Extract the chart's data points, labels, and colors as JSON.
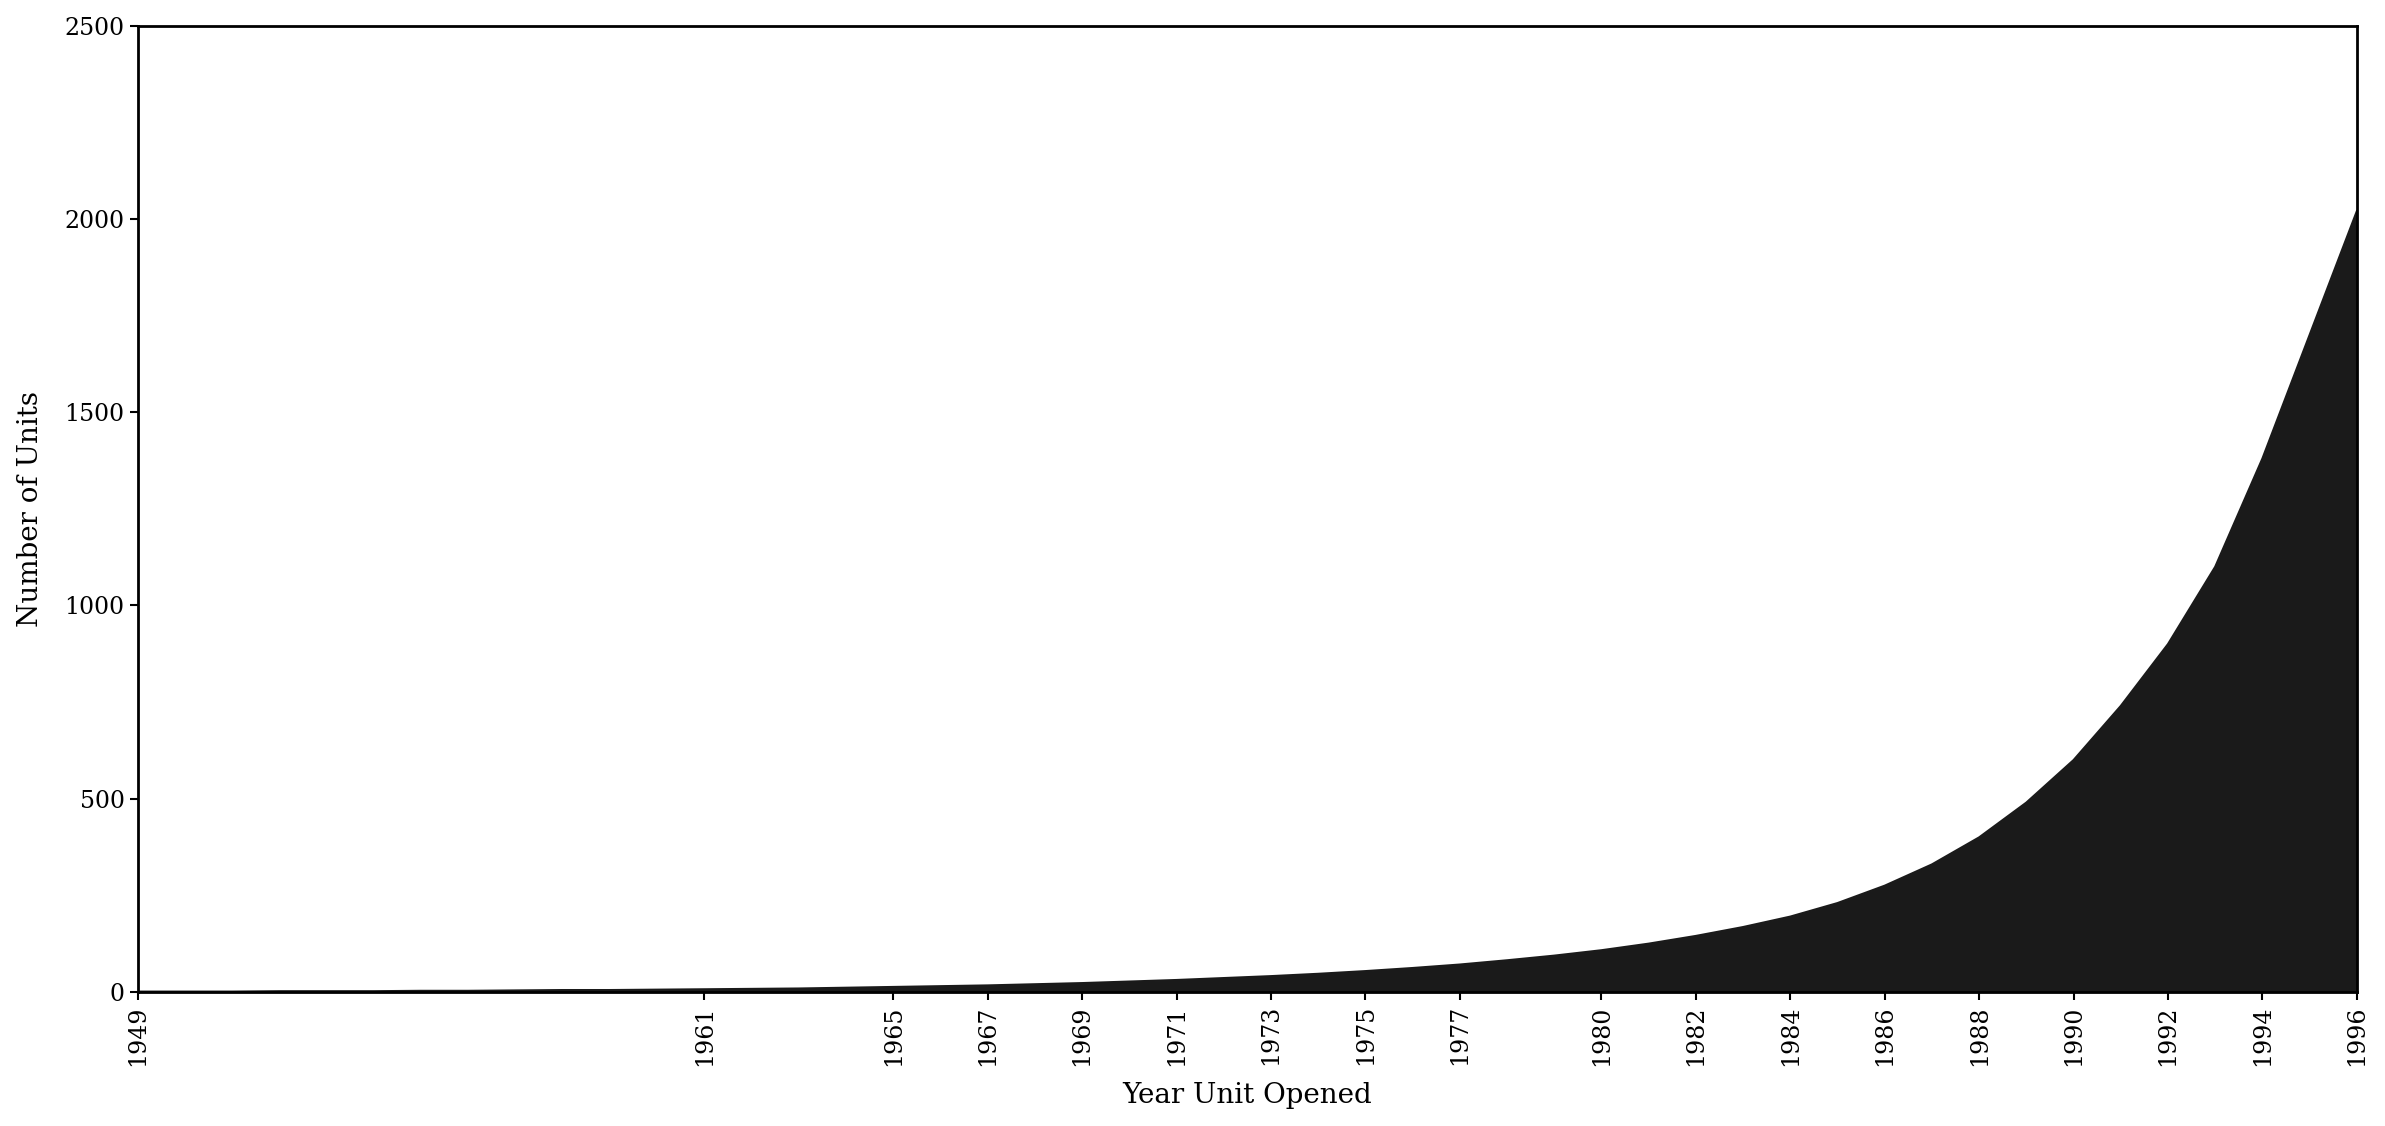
{
  "xlabel": "Year Unit Opened",
  "ylabel": "Number of Units",
  "area_color": "#1a1a1a",
  "background_color": "#ffffff",
  "ylim": [
    0,
    2500
  ],
  "yticks": [
    0,
    500,
    1000,
    1500,
    2000,
    2500
  ],
  "xtick_labels": [
    "1949",
    "1961",
    "1965",
    "1967",
    "1969",
    "1971",
    "1973",
    "1975",
    "1977",
    "1980",
    "1982",
    "1984",
    "1986",
    "1988",
    "1990",
    "1992",
    "1994",
    "1996"
  ],
  "years": [
    1949,
    1950,
    1951,
    1952,
    1953,
    1954,
    1955,
    1956,
    1957,
    1958,
    1959,
    1960,
    1961,
    1962,
    1963,
    1964,
    1965,
    1966,
    1967,
    1968,
    1969,
    1970,
    1971,
    1972,
    1973,
    1974,
    1975,
    1976,
    1977,
    1978,
    1979,
    1980,
    1981,
    1982,
    1983,
    1984,
    1985,
    1986,
    1987,
    1988,
    1989,
    1990,
    1991,
    1992,
    1993,
    1994,
    1995,
    1996
  ],
  "values": [
    1,
    1,
    1,
    2,
    2,
    2,
    3,
    3,
    4,
    5,
    5,
    6,
    7,
    8,
    9,
    11,
    13,
    15,
    17,
    20,
    23,
    27,
    31,
    36,
    41,
    47,
    54,
    62,
    71,
    82,
    94,
    108,
    125,
    145,
    168,
    195,
    230,
    275,
    330,
    400,
    490,
    600,
    740,
    900,
    1100,
    1380,
    1700,
    2020
  ]
}
